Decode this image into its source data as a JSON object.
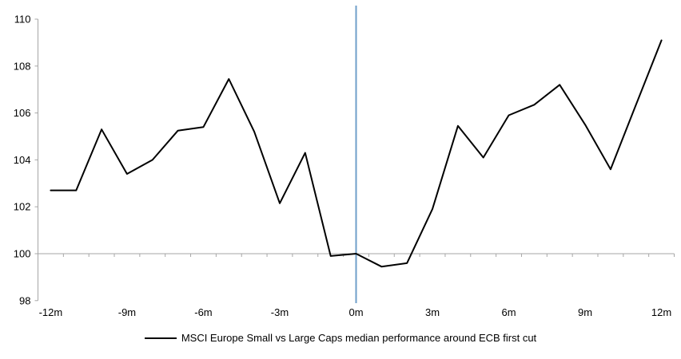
{
  "chart_data": {
    "type": "line",
    "title": "",
    "legend": "MSCI Europe Small vs Large Caps median performance around ECB first cut",
    "legend_position": "bottom-center",
    "x_unit": "months relative to ECB first cut",
    "months": [
      -12,
      -11,
      -10,
      -9,
      -8,
      -7,
      -6,
      -5,
      -4,
      -3,
      -2,
      -1,
      0,
      1,
      2,
      3,
      4,
      5,
      6,
      7,
      8,
      9,
      10,
      11,
      12
    ],
    "values": [
      102.7,
      102.7,
      105.3,
      103.4,
      104.0,
      105.25,
      105.4,
      107.45,
      105.2,
      102.15,
      104.3,
      99.9,
      100.0,
      99.45,
      99.6,
      101.9,
      105.45,
      104.1,
      105.9,
      106.35,
      107.2,
      105.5,
      103.6,
      106.35,
      109.1
    ],
    "x_tick_labels": [
      "-12m",
      "-9m",
      "-6m",
      "-3m",
      "0m",
      "3m",
      "6m",
      "9m",
      "12m"
    ],
    "x_tick_months": [
      -12,
      -9,
      -6,
      -3,
      0,
      3,
      6,
      9,
      12
    ],
    "y_ticks": [
      98,
      100,
      102,
      104,
      106,
      108,
      110
    ],
    "ylim": [
      98,
      110
    ],
    "xlim_months": [
      -12,
      12
    ],
    "baseline_value": 100,
    "event_line_month": 0,
    "grid": "baseline-only",
    "colors": {
      "series_line": "#000000",
      "event_line": "#6f9fca",
      "baseline": "#a6a6a6",
      "axis": "#a6a6a6",
      "tick": "#a6a6a6",
      "label_text": "#000000"
    }
  }
}
